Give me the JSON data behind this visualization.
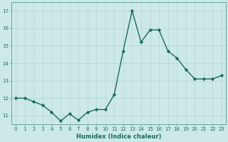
{
  "x": [
    0,
    1,
    2,
    3,
    4,
    5,
    6,
    7,
    8,
    9,
    10,
    11,
    12,
    13,
    14,
    15,
    16,
    17,
    18,
    19,
    20,
    21,
    22,
    23
  ],
  "y": [
    12.0,
    12.0,
    11.8,
    11.6,
    11.2,
    10.7,
    11.1,
    10.75,
    11.2,
    11.35,
    11.35,
    12.2,
    14.7,
    17.0,
    15.2,
    15.9,
    15.9,
    14.7,
    14.3,
    13.65,
    13.1,
    13.1,
    13.1,
    13.3
  ],
  "xlabel": "Humidex (Indice chaleur)",
  "xlim": [
    -0.5,
    23.5
  ],
  "ylim": [
    10.5,
    17.5
  ],
  "yticks": [
    11,
    12,
    13,
    14,
    15,
    16,
    17
  ],
  "xticks": [
    0,
    1,
    2,
    3,
    4,
    5,
    6,
    7,
    8,
    9,
    10,
    11,
    12,
    13,
    14,
    15,
    16,
    17,
    18,
    19,
    20,
    21,
    22,
    23
  ],
  "line_color": "#1a6b5a",
  "bg_color": "#cce9e7",
  "grid_color": "#b8d8d6",
  "face_color": "#cce9e7",
  "marker": "D",
  "markersize": 2.2,
  "linewidth": 1.0,
  "xlabel_fontsize": 6.0,
  "tick_fontsize": 5.0
}
